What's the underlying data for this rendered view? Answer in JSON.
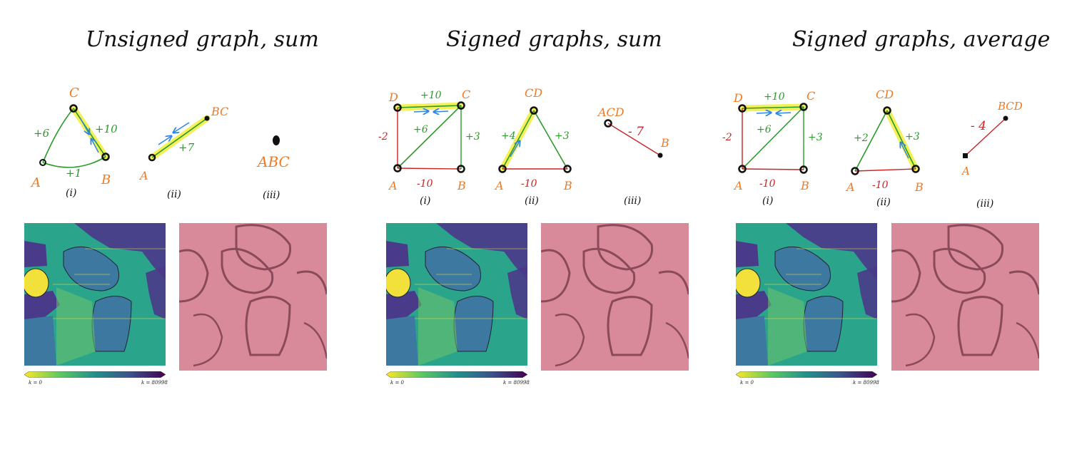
{
  "panels": [
    {
      "title": "Unsigned graph, sum",
      "graph_i": {
        "nodes": {
          "A": "A",
          "B": "B",
          "C": "C"
        },
        "edges": {
          "ab": "+1",
          "ac": "+6",
          "bc": "+10"
        },
        "label": "(i)"
      },
      "graph_ii": {
        "nodes": {
          "A": "A",
          "BC": "BC"
        },
        "edges": {
          "abc": "+7"
        },
        "label": "(ii)"
      },
      "graph_iii": {
        "nodes": {
          "ABC": "ABC"
        },
        "label": "(iii)"
      },
      "colorbar": {
        "left": "k = 0",
        "right": "k = 80998"
      }
    },
    {
      "title": "Signed graphs, sum",
      "graph_i": {
        "nodes": {
          "A": "A",
          "B": "B",
          "C": "C",
          "D": "D"
        },
        "edges": {
          "dc": "+10",
          "da": "-2",
          "ac": "+6",
          "bc": "+3",
          "ab": "-10"
        },
        "label": "(i)"
      },
      "graph_ii": {
        "nodes": {
          "A": "A",
          "B": "B",
          "CD": "CD"
        },
        "edges": {
          "acd": "+4",
          "bcd": "+3",
          "ab": "-10"
        },
        "label": "(ii)"
      },
      "graph_iii": {
        "nodes": {
          "ACD": "ACD",
          "B": "B"
        },
        "edges": {
          "acdb": "- 7"
        },
        "label": "(iii)"
      },
      "colorbar": {
        "left": "k = 0",
        "right": "k = 80998"
      }
    },
    {
      "title": "Signed graphs, average",
      "graph_i": {
        "nodes": {
          "A": "A",
          "B": "B",
          "C": "C",
          "D": "D"
        },
        "edges": {
          "dc": "+10",
          "da": "-2",
          "ac": "+6",
          "bc": "+3",
          "ab": "-10"
        },
        "label": "(i)"
      },
      "graph_ii": {
        "nodes": {
          "A": "A",
          "B": "B",
          "CD": "CD"
        },
        "edges": {
          "acd": "+2",
          "bcd": "+3",
          "ab": "-10"
        },
        "label": "(ii)"
      },
      "graph_iii": {
        "nodes": {
          "A": "A",
          "BCD": "BCD"
        },
        "edges": {
          "abcd": "- 4"
        },
        "label": "(iii)"
      },
      "colorbar": {
        "left": "k = 0",
        "right": "k = 80998"
      }
    }
  ],
  "colors": {
    "node_label": "#f07a22",
    "positive_edge": "#2a9a2a",
    "negative_edge": "#cc2222",
    "highlight": "#f4f05a",
    "arrow": "#2f86e6",
    "segmentation_teal": "#2aa58c",
    "segmentation_purple": "#4a3a8a",
    "segmentation_yellow": "#f2e13a",
    "em_tint": "#d98a9a"
  }
}
